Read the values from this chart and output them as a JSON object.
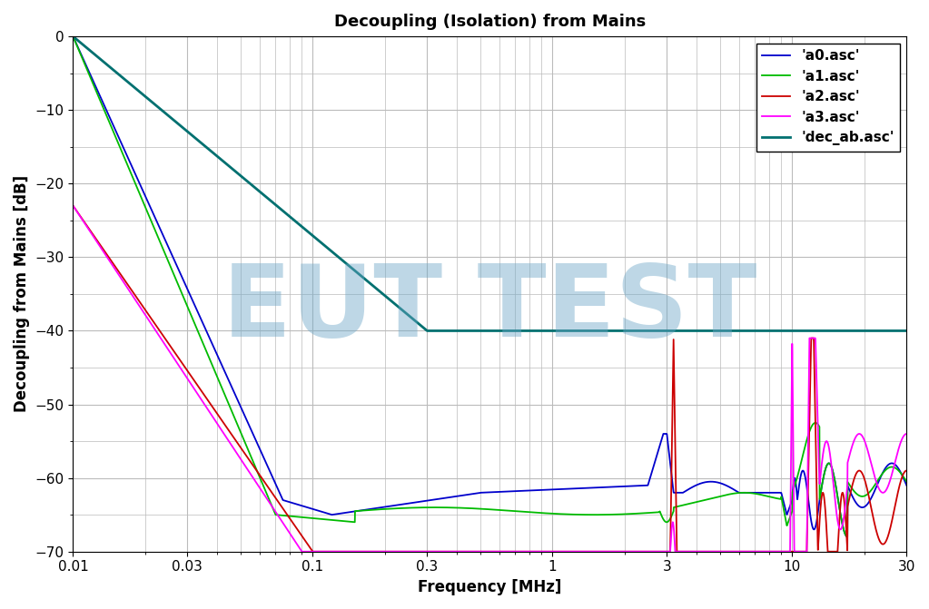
{
  "title": "Decoupling (Isolation) from Mains",
  "xlabel": "Frequency [MHz]",
  "ylabel": "Decoupling from Mains [dB]",
  "xlim": [
    0.01,
    30
  ],
  "ylim": [
    -70,
    0
  ],
  "yticks": [
    0,
    -10,
    -20,
    -30,
    -40,
    -50,
    -60,
    -70
  ],
  "xticks": [
    0.01,
    0.03,
    0.1,
    0.3,
    1,
    3,
    10,
    30
  ],
  "xticklabels": [
    "0.01",
    "0.03",
    "0.1",
    "0.3",
    "1",
    "3",
    "10",
    "30"
  ],
  "watermark_text": "EUT TEST",
  "watermark_color": "#6fa8c8",
  "watermark_alpha": 0.45,
  "legend_labels": [
    "'a0.asc'",
    "'a1.asc'",
    "'a2.asc'",
    "'a3.asc'",
    "'dec_ab.asc'"
  ],
  "line_colors": [
    "#0000cc",
    "#00bb00",
    "#cc0000",
    "#ff00ff",
    "#007070"
  ],
  "line_widths": [
    1.3,
    1.3,
    1.3,
    1.3,
    2.0
  ],
  "background_color": "#ffffff",
  "grid_color": "#bbbbbb",
  "title_fontsize": 13,
  "label_fontsize": 12,
  "tick_fontsize": 11,
  "legend_fontsize": 11
}
